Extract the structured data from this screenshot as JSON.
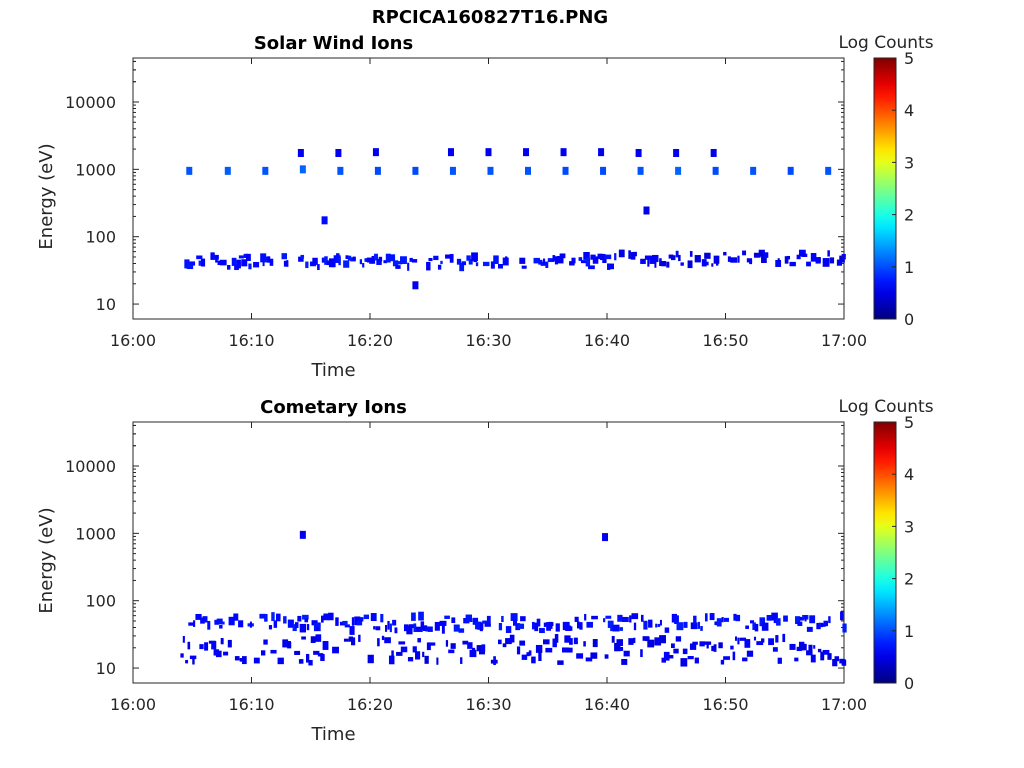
{
  "figure": {
    "title": "RPCICA160827T16.PNG",
    "background": "#ffffff"
  },
  "chart_data": [
    {
      "type": "heatmap",
      "title": "Solar Wind Ions",
      "xlabel": "Time",
      "ylabel": "Energy (eV)",
      "xticks": [
        "16:00",
        "16:10",
        "16:20",
        "16:30",
        "16:40",
        "16:50",
        "17:00"
      ],
      "xlim": [
        "16:00",
        "17:00"
      ],
      "ylog": true,
      "yticks": [
        10,
        100,
        1000,
        10000
      ],
      "ylim": [
        6,
        45000
      ],
      "colorbar": {
        "label": "Log Counts",
        "ticks": [
          0,
          1,
          2,
          3,
          4,
          5
        ],
        "range": [
          0,
          5
        ],
        "colormap": "jet"
      },
      "cells": [
        {
          "t": "16:04:45",
          "e": 950,
          "v": 1.4
        },
        {
          "t": "16:08:00",
          "e": 950,
          "v": 1.5
        },
        {
          "t": "16:11:10",
          "e": 950,
          "v": 1.4
        },
        {
          "t": "16:14:20",
          "e": 1000,
          "v": 1.6
        },
        {
          "t": "16:17:30",
          "e": 950,
          "v": 1.4
        },
        {
          "t": "16:20:40",
          "e": 950,
          "v": 1.3
        },
        {
          "t": "16:23:50",
          "e": 950,
          "v": 1.3
        },
        {
          "t": "16:27:00",
          "e": 950,
          "v": 1.4
        },
        {
          "t": "16:30:10",
          "e": 950,
          "v": 1.4
        },
        {
          "t": "16:33:20",
          "e": 950,
          "v": 1.4
        },
        {
          "t": "16:36:30",
          "e": 950,
          "v": 1.3
        },
        {
          "t": "16:39:40",
          "e": 950,
          "v": 1.3
        },
        {
          "t": "16:42:50",
          "e": 950,
          "v": 1.4
        },
        {
          "t": "16:46:00",
          "e": 950,
          "v": 1.6
        },
        {
          "t": "16:49:10",
          "e": 950,
          "v": 1.3
        },
        {
          "t": "16:52:20",
          "e": 950,
          "v": 1.4
        },
        {
          "t": "16:55:30",
          "e": 950,
          "v": 1.3
        },
        {
          "t": "16:58:40",
          "e": 950,
          "v": 1.4
        },
        {
          "t": "16:14:10",
          "e": 1750,
          "v": 0.3
        },
        {
          "t": "16:17:20",
          "e": 1750,
          "v": 0.3
        },
        {
          "t": "16:20:30",
          "e": 1800,
          "v": 0.3
        },
        {
          "t": "16:26:50",
          "e": 1800,
          "v": 0.3
        },
        {
          "t": "16:30:00",
          "e": 1800,
          "v": 0.3
        },
        {
          "t": "16:33:10",
          "e": 1800,
          "v": 0.3
        },
        {
          "t": "16:36:20",
          "e": 1800,
          "v": 0.3
        },
        {
          "t": "16:39:30",
          "e": 1800,
          "v": 0.3
        },
        {
          "t": "16:42:40",
          "e": 1750,
          "v": 0.3
        },
        {
          "t": "16:45:50",
          "e": 1750,
          "v": 0.3
        },
        {
          "t": "16:49:00",
          "e": 1750,
          "v": 0.3
        },
        {
          "t": "16:16:10",
          "e": 175,
          "v": 0.6
        },
        {
          "t": "16:43:20",
          "e": 245,
          "v": 0.3
        },
        {
          "t": "16:23:50",
          "e": 19,
          "v": 0.3
        }
      ],
      "bands": [
        {
          "t0": "16:04:20",
          "t1": "16:29:50",
          "e0": 35,
          "e1": 52,
          "v": 0.35
        },
        {
          "t0": "16:30:00",
          "t1": "16:41:00",
          "e0": 35,
          "e1": 52,
          "v": 0.3
        },
        {
          "t0": "16:41:00",
          "t1": "17:00:00",
          "e0": 38,
          "e1": 58,
          "v": 0.05
        }
      ]
    },
    {
      "type": "heatmap",
      "title": "Cometary Ions",
      "xlabel": "Time",
      "ylabel": "Energy (eV)",
      "xticks": [
        "16:00",
        "16:10",
        "16:20",
        "16:30",
        "16:40",
        "16:50",
        "17:00"
      ],
      "xlim": [
        "16:00",
        "17:00"
      ],
      "ylog": true,
      "yticks": [
        10,
        100,
        1000,
        10000
      ],
      "ylim": [
        6,
        45000
      ],
      "colorbar": {
        "label": "Log Counts",
        "ticks": [
          0,
          1,
          2,
          3,
          4,
          5
        ],
        "range": [
          0,
          5
        ],
        "colormap": "jet"
      },
      "cells": [
        {
          "t": "16:14:20",
          "e": 950,
          "v": 0.3
        },
        {
          "t": "16:39:50",
          "e": 880,
          "v": 0.3
        }
      ],
      "bands": [
        {
          "t0": "16:04:40",
          "t1": "17:00:00",
          "e0": 36,
          "e1": 60,
          "v": 0.35
        },
        {
          "t0": "16:04:00",
          "t1": "17:00:00",
          "e0": 12,
          "e1": 28,
          "v": 0.05
        }
      ]
    }
  ]
}
